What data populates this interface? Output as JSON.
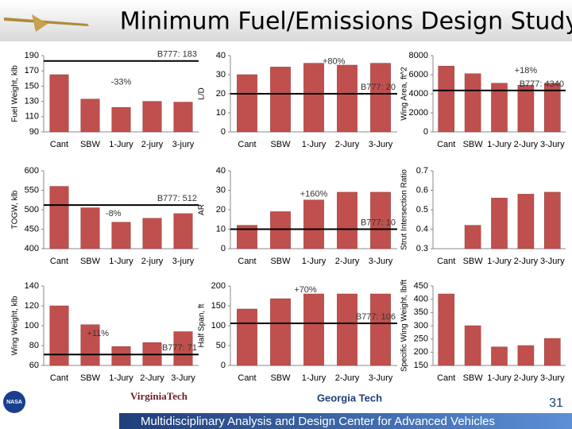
{
  "title": "Minimum Fuel/Emissions Design Study",
  "footer": "Multidisciplinary Analysis and Design Center for Advanced Vehicles",
  "page_number": "31",
  "logos": [
    "NASA",
    "VirginiaTech",
    "Georgia Tech"
  ],
  "chart_data": [
    {
      "type": "bar",
      "y_label": "Fuel Weight, klb",
      "categories": [
        "Cant",
        "SBW",
        "1-Jury",
        "2-jury",
        "3-jury"
      ],
      "values": [
        165,
        133,
        122,
        130,
        129
      ],
      "color": "#c0504d",
      "ylim": [
        90,
        190
      ],
      "yticks": [
        90,
        110,
        130,
        150,
        170,
        190
      ],
      "reference": {
        "label": "B777: 183",
        "value": 183
      },
      "annotation": "-33%"
    },
    {
      "type": "bar",
      "y_label": "L/D",
      "categories": [
        "Cant",
        "SBW",
        "1-Jury",
        "2-Jury",
        "3-Jury"
      ],
      "values": [
        30,
        34,
        36,
        35,
        36
      ],
      "color": "#c0504d",
      "ylim": [
        0,
        40
      ],
      "yticks": [
        0,
        10,
        20,
        30,
        40
      ],
      "reference": {
        "label": "B777: 20",
        "value": 20
      },
      "annotation": "+80%"
    },
    {
      "type": "bar",
      "y_label": "Wing Area, ft^2",
      "categories": [
        "Cant",
        "SBW",
        "1-Jury",
        "2-Jury",
        "3-Jury"
      ],
      "values": [
        6900,
        6100,
        5100,
        4900,
        5100
      ],
      "color": "#c0504d",
      "ylim": [
        0,
        8000
      ],
      "yticks": [
        0,
        2000,
        4000,
        6000,
        8000
      ],
      "reference": {
        "label": "B777: 4340",
        "value": 4340
      },
      "annotation": "+18%"
    },
    {
      "type": "bar",
      "y_label": "TOGW, klb",
      "categories": [
        "Cant",
        "SBW",
        "1-Jury",
        "2-jury",
        "3-jury"
      ],
      "values": [
        560,
        505,
        468,
        478,
        490
      ],
      "color": "#c0504d",
      "ylim": [
        400,
        600
      ],
      "yticks": [
        400,
        450,
        500,
        550,
        600
      ],
      "reference": {
        "label": "B777: 512",
        "value": 512
      },
      "annotation": "-8%"
    },
    {
      "type": "bar",
      "y_label": "AR",
      "categories": [
        "Cant",
        "SBW",
        "1-Jury",
        "2-Jury",
        "3-Jury"
      ],
      "values": [
        12,
        19,
        25,
        29,
        29
      ],
      "color": "#c0504d",
      "ylim": [
        0,
        40
      ],
      "yticks": [
        0,
        10,
        20,
        30,
        40
      ],
      "reference": {
        "label": "B777: 10",
        "value": 10
      },
      "annotation": "+160%"
    },
    {
      "type": "bar",
      "y_label": "Strut Intersection Ratio",
      "categories": [
        "Cant",
        "SBW",
        "1-Jury",
        "2-Jury",
        "3-Jury"
      ],
      "values": [
        null,
        0.42,
        0.56,
        0.58,
        0.59
      ],
      "color": "#c0504d",
      "ylim": [
        0.3,
        0.7
      ],
      "yticks": [
        0.3,
        0.4,
        0.5,
        0.6,
        0.7
      ]
    },
    {
      "type": "bar",
      "y_label": "Wing Weight, klb",
      "categories": [
        "Cant",
        "SBW",
        "1-Jury",
        "2-Jury",
        "3-Jury"
      ],
      "values": [
        120,
        101,
        79,
        83,
        94
      ],
      "color": "#c0504d",
      "ylim": [
        60,
        140
      ],
      "yticks": [
        60,
        80,
        100,
        120,
        140
      ],
      "reference": {
        "label": "B777: 71",
        "value": 71
      },
      "annotation": "+11%"
    },
    {
      "type": "bar",
      "y_label": "Half Span, ft",
      "categories": [
        "Cant",
        "SBW",
        "1-Jury",
        "2-Jury",
        "3-Jury"
      ],
      "values": [
        142,
        168,
        180,
        180,
        180
      ],
      "color": "#c0504d",
      "ylim": [
        0,
        200
      ],
      "yticks": [
        0,
        50,
        100,
        150,
        200
      ],
      "reference": {
        "label": "B777: 106",
        "value": 106
      },
      "annotation": "+70%"
    },
    {
      "type": "bar",
      "y_label": "Specific Wing Weight, lb/ft",
      "categories": [
        "Cant",
        "SBW",
        "1-Jury",
        "2-Jury",
        "3-Jury"
      ],
      "values": [
        420,
        300,
        220,
        225,
        252
      ],
      "color": "#c0504d",
      "ylim": [
        150,
        450
      ],
      "yticks": [
        150,
        200,
        250,
        300,
        350,
        400,
        450
      ]
    }
  ]
}
